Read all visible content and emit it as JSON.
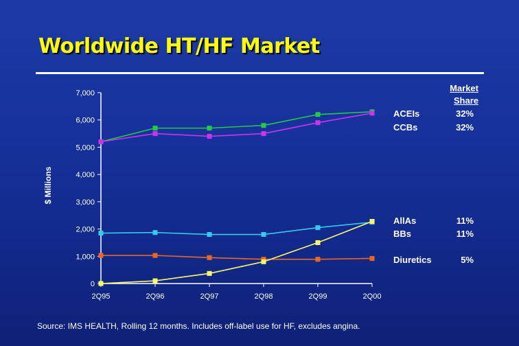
{
  "slide": {
    "title": "Worldwide HT/HF Market",
    "source": "Source: IMS HEALTH, Rolling 12 months. Includes off-label use for HF, excludes angina."
  },
  "legend": {
    "header_line1": "Market",
    "header_line2": "Share",
    "items": [
      {
        "label": "ACEIs",
        "share": "32%"
      },
      {
        "label": "CCBs",
        "share": "32%"
      },
      {
        "label": "AllAs",
        "share": "11%"
      },
      {
        "label": "BBs",
        "share": "11%"
      },
      {
        "label": "Diuretics",
        "share": "5%"
      }
    ]
  },
  "chart_data": {
    "type": "line",
    "title": "Worldwide HT/HF Market",
    "ylabel": "$ Millions",
    "xlabel": "",
    "categories": [
      "2Q95",
      "2Q96",
      "2Q97",
      "2Q98",
      "2Q99",
      "2Q00"
    ],
    "ylim": [
      0,
      7000
    ],
    "yticks": [
      0,
      1000,
      2000,
      3000,
      4000,
      5000,
      6000,
      7000
    ],
    "ytick_labels": [
      "0",
      "1,000",
      "2,000",
      "3,000",
      "4,000",
      "5,000",
      "6,000",
      "7,000"
    ],
    "grid": false,
    "legend_position": "right",
    "series": [
      {
        "color": "#22cc44",
        "values": [
          5200,
          5700,
          5700,
          5800,
          6200,
          6300
        ]
      },
      {
        "color": "#cc33ee",
        "values": [
          5200,
          5500,
          5400,
          5500,
          5900,
          6250
        ]
      },
      {
        "color": "#33ccee",
        "values": [
          1850,
          1870,
          1800,
          1800,
          2050,
          2250
        ]
      },
      {
        "color": "#ee6622",
        "values": [
          1030,
          1030,
          950,
          890,
          890,
          920
        ]
      },
      {
        "color": "#ffff66",
        "values": [
          0,
          100,
          370,
          800,
          1500,
          2280
        ]
      }
    ]
  }
}
